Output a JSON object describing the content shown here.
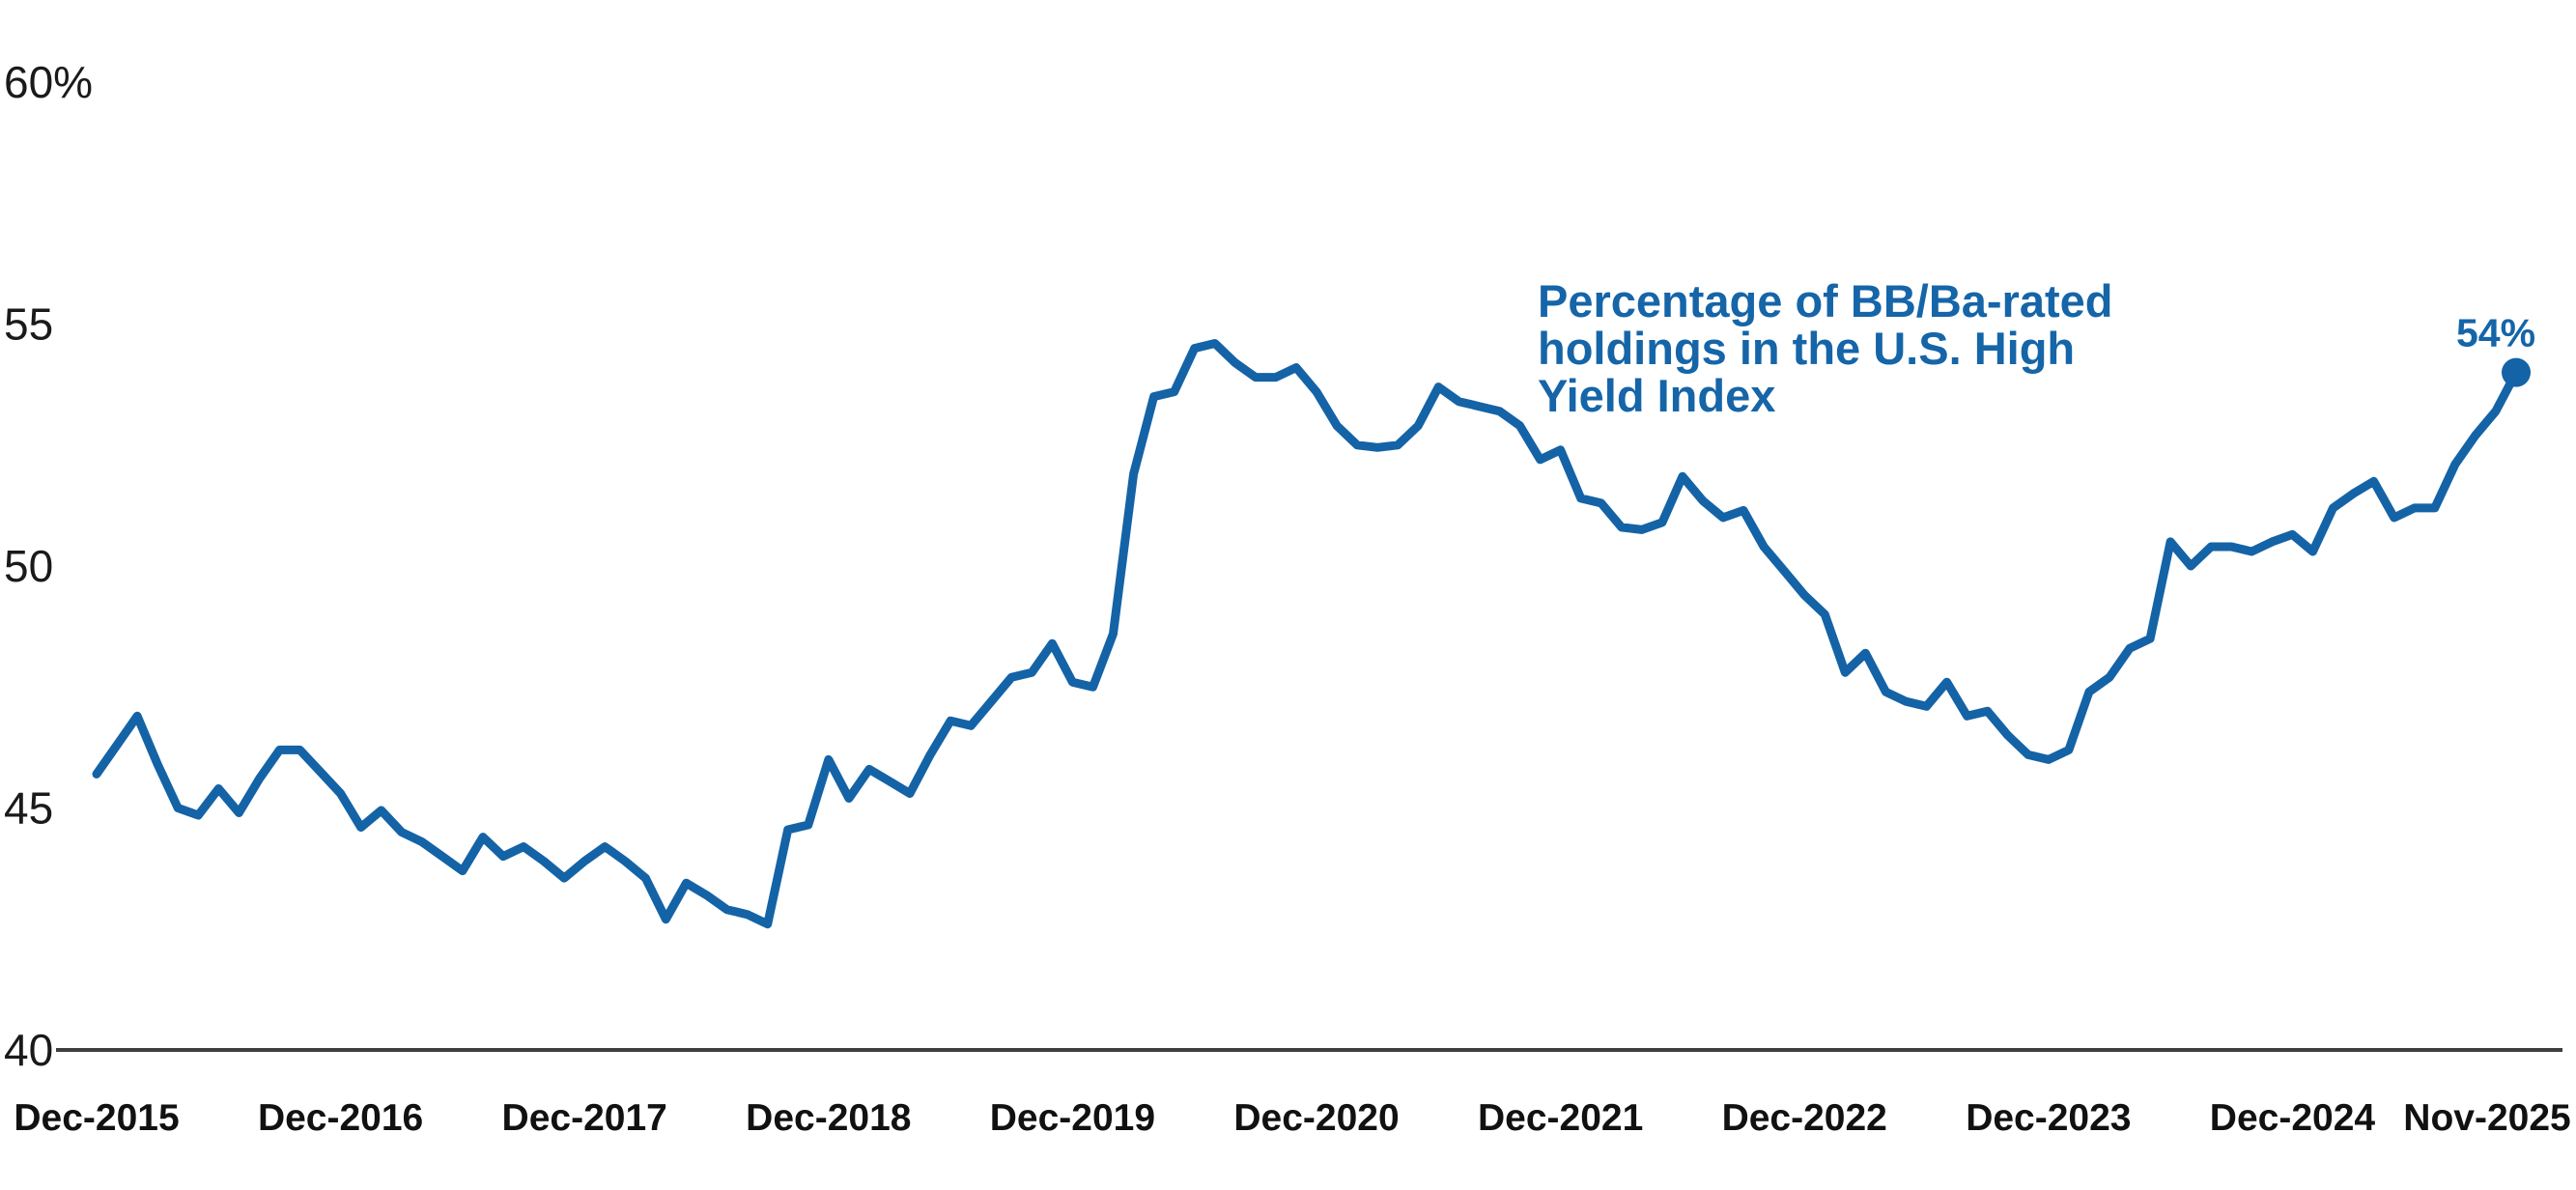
{
  "colors": {
    "line": "#1463A6",
    "accent_text": "#1565A8",
    "axis_line": "#3f3f3f",
    "tick_text": "#1a1a1a"
  },
  "annotation": {
    "lines": [
      "Percentage of BB/Ba-rated",
      "holdings in the U.S. High",
      "Yield Index"
    ]
  },
  "chart_data": {
    "type": "line",
    "title": "Percentage of BB/Ba-rated holdings in the U.S. High Yield Index",
    "unit": "percent",
    "frequency": "monthly",
    "x_start": "Dec-2015",
    "x_end": "Nov-2025",
    "ylim": [
      40,
      60
    ],
    "grid": "off",
    "legend": "none",
    "end_point_label": "54%",
    "end_value": 54.0,
    "y_ticks": [
      {
        "label": "60%",
        "value": 60
      },
      {
        "label": "55",
        "value": 55
      },
      {
        "label": "50",
        "value": 50
      },
      {
        "label": "45",
        "value": 45
      },
      {
        "label": "40",
        "value": 40
      }
    ],
    "x_ticks": [
      {
        "label": "Dec-2015",
        "month_index": 0
      },
      {
        "label": "Dec-2016",
        "month_index": 12
      },
      {
        "label": "Dec-2017",
        "month_index": 24
      },
      {
        "label": "Dec-2018",
        "month_index": 36
      },
      {
        "label": "Dec-2019",
        "month_index": 48
      },
      {
        "label": "Dec-2020",
        "month_index": 60
      },
      {
        "label": "Dec-2021",
        "month_index": 72
      },
      {
        "label": "Dec-2022",
        "month_index": 84
      },
      {
        "label": "Dec-2023",
        "month_index": 96
      },
      {
        "label": "Dec-2024",
        "month_index": 108
      },
      {
        "label": "Nov-2025",
        "month_index": 119
      }
    ],
    "series": [
      {
        "name": "BB/Ba-rated share of U.S. High Yield Index",
        "start_month": "Dec-2015",
        "monthly_values": [
          45.7,
          46.3,
          46.9,
          45.9,
          45.0,
          44.85,
          45.4,
          44.9,
          45.6,
          46.2,
          46.2,
          45.75,
          45.3,
          44.6,
          44.95,
          44.5,
          44.3,
          44.0,
          43.7,
          44.4,
          44.0,
          44.2,
          43.9,
          43.55,
          43.9,
          44.2,
          43.9,
          43.55,
          42.7,
          43.45,
          43.2,
          42.9,
          42.8,
          42.6,
          44.55,
          44.65,
          46.0,
          45.2,
          45.8,
          45.55,
          45.3,
          46.1,
          46.8,
          46.7,
          47.2,
          47.7,
          47.8,
          48.4,
          47.6,
          47.5,
          48.6,
          51.9,
          53.5,
          53.6,
          54.5,
          54.6,
          54.2,
          53.9,
          53.9,
          54.1,
          53.6,
          52.9,
          52.5,
          52.45,
          52.5,
          52.9,
          53.7,
          53.4,
          53.3,
          53.2,
          52.9,
          52.2,
          52.4,
          51.4,
          51.3,
          50.8,
          50.75,
          50.9,
          51.85,
          51.35,
          51.0,
          51.15,
          50.4,
          49.9,
          49.4,
          49.0,
          47.8,
          48.2,
          47.4,
          47.2,
          47.1,
          47.6,
          46.9,
          47.0,
          46.5,
          46.1,
          46.0,
          46.2,
          47.4,
          47.7,
          48.3,
          48.5,
          50.5,
          50.0,
          50.4,
          50.4,
          50.3,
          50.5,
          50.65,
          50.3,
          51.2,
          51.5,
          51.75,
          51.0,
          51.2,
          51.2,
          52.1,
          52.7,
          53.2,
          54.0
        ]
      }
    ]
  }
}
